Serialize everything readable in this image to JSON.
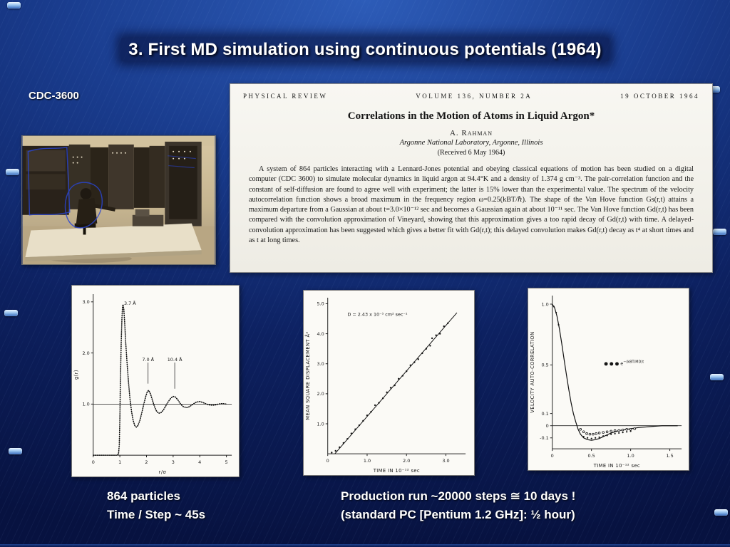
{
  "slide": {
    "title": "3. First MD simulation using continuous potentials (1964)",
    "computer_label": "CDC-3600",
    "notes_left": [
      "864 particles",
      "Time / Step ~ 45s"
    ],
    "notes_right": [
      "Production run ~20000 steps  ≅  10 days !",
      "(standard PC [Pentium 1.2 GHz]: ½ hour)"
    ]
  },
  "paper": {
    "header_left": "PHYSICAL REVIEW",
    "header_center": "VOLUME 136, NUMBER 2A",
    "header_right": "19 OCTOBER 1964",
    "title": "Correlations in the Motion of Atoms in Liquid Argon*",
    "author": "A. Rahman",
    "affiliation": "Argonne National Laboratory, Argonne, Illinois",
    "received": "(Received 6 May 1964)",
    "abstract": "A system of 864 particles interacting with a Lennard-Jones potential and obeying classical equations of motion has been studied on a digital computer (CDC 3600) to simulate molecular dynamics in liquid argon at 94.4°K and a density of 1.374 g cm⁻³. The pair-correlation function and the constant of self-diffusion are found to agree well with experiment; the latter is 15% lower than the experimental value. The spectrum of the velocity autocorrelation function shows a broad maximum in the frequency region ω=0.25(kBT/ℏ). The shape of the Van Hove function Gs(r,t) attains a maximum departure from a Gaussian at about t=3.0×10⁻¹² sec and becomes a Gaussian again at about 10⁻¹¹ sec. The Van Hove function Gd(r,t) has been compared with the convolution approximation of Vineyard, showing that this approximation gives a too rapid decay of Gd(r,t) with time. A delayed-convolution approximation has been suggested which gives a better fit with Gd(r,t); this delayed convolution makes Gd(r,t) decay as t⁴ at short times and as t at long times."
  },
  "chart_data": [
    {
      "id": "gr",
      "type": "line",
      "description": "Radial distribution function g(r) of liquid argon",
      "xlabel": "r/σ",
      "ylabel": "g(r)",
      "xlim": [
        0,
        5.2
      ],
      "ylim": [
        0,
        3.15
      ],
      "xticks": [
        "0",
        "1",
        "2",
        "3",
        "4",
        "5"
      ],
      "yticks": [
        "1.0",
        "2.0",
        "3.0"
      ],
      "baseline_y": 1.0,
      "series": [
        {
          "name": "g(r)",
          "x": [
            0,
            0.5,
            0.88,
            0.95,
            0.98,
            1.0,
            1.02,
            1.05,
            1.08,
            1.1,
            1.12,
            1.15,
            1.18,
            1.22,
            1.27,
            1.32,
            1.38,
            1.44,
            1.5,
            1.56,
            1.62,
            1.68,
            1.75,
            1.82,
            1.9,
            1.97,
            2.03,
            2.08,
            2.15,
            2.22,
            2.3,
            2.38,
            2.46,
            2.54,
            2.63,
            2.72,
            2.82,
            2.92,
            3.0,
            3.08,
            3.18,
            3.28,
            3.38,
            3.5,
            3.62,
            3.75,
            3.88,
            4.0,
            4.12,
            4.25,
            4.4,
            4.55,
            4.7,
            4.85,
            5.0
          ],
          "y": [
            0,
            0,
            0,
            0.02,
            0.2,
            0.7,
            1.4,
            2.2,
            2.7,
            2.9,
            2.95,
            2.85,
            2.6,
            2.2,
            1.8,
            1.45,
            1.1,
            0.85,
            0.68,
            0.58,
            0.55,
            0.58,
            0.68,
            0.82,
            1.0,
            1.15,
            1.24,
            1.27,
            1.2,
            1.08,
            0.95,
            0.86,
            0.82,
            0.83,
            0.88,
            0.96,
            1.05,
            1.12,
            1.15,
            1.14,
            1.08,
            1.0,
            0.95,
            0.93,
            0.95,
            1.0,
            1.04,
            1.05,
            1.03,
            1.0,
            0.98,
            0.98,
            1.0,
            1.01,
            1.0
          ]
        }
      ],
      "annotations": [
        {
          "text": "3.7 Å",
          "x": 1.38,
          "label_y": 2.94
        },
        {
          "text": "7.0 Å",
          "x": 2.06,
          "label_y": 1.84,
          "tip_y": 1.4
        },
        {
          "text": "10.4 Å",
          "x": 3.06,
          "label_y": 1.84,
          "tip_y": 1.3
        }
      ]
    },
    {
      "id": "msd",
      "type": "scatter",
      "description": "Mean square displacement vs time, slope gives self-diffusion constant",
      "xlabel": "TIME IN 10⁻¹² sec",
      "ylabel": "MEAN SQUARE DISPLACEMENT Å²",
      "xlim": [
        0,
        3.5
      ],
      "ylim": [
        0,
        5.2
      ],
      "xticks": [
        "0",
        "1.0",
        "2.0",
        "3.0"
      ],
      "yticks": [
        "1.0",
        "2.0",
        "3.0",
        "4.0",
        "5.0"
      ],
      "annotation": {
        "text": "D = 2.43 x 10⁻⁵ cm² sec⁻¹",
        "x": 0.5,
        "y": 4.6
      },
      "fit_line": {
        "x1": 0.18,
        "y1": 0,
        "x2": 3.28,
        "y2": 4.7
      },
      "points_x": [
        0.1,
        0.2,
        0.3,
        0.4,
        0.5,
        0.6,
        0.7,
        0.8,
        0.9,
        1.0,
        1.1,
        1.2,
        1.3,
        1.4,
        1.5,
        1.6,
        1.7,
        1.8,
        1.9,
        2.0,
        2.1,
        2.2,
        2.3,
        2.4,
        2.5,
        2.6,
        2.65,
        2.75,
        2.85,
        2.95,
        3.05
      ],
      "points_y": [
        0.04,
        0.1,
        0.22,
        0.36,
        0.5,
        0.68,
        0.82,
        0.95,
        1.1,
        1.28,
        1.4,
        1.62,
        1.7,
        1.85,
        2.05,
        2.2,
        2.28,
        2.5,
        2.6,
        2.75,
        2.95,
        3.05,
        3.15,
        3.35,
        3.5,
        3.6,
        3.85,
        3.95,
        4.0,
        4.25,
        4.35
      ]
    },
    {
      "id": "vacf",
      "type": "line",
      "description": "Velocity autocorrelation function of liquid argon",
      "xlabel": "TIME IN 10⁻¹² sec",
      "ylabel": "VELOCITY AUTO-CORRELATION",
      "xlim": [
        0,
        1.65
      ],
      "ylim": [
        -0.19,
        1.07
      ],
      "xticks": [
        "0",
        "0.5",
        "1.0",
        "1.5"
      ],
      "yticks": [
        "1.0",
        "0.5",
        "0.1",
        "0",
        "-0.1"
      ],
      "baseline_y": 0,
      "curve_x": [
        0,
        0.03,
        0.06,
        0.09,
        0.12,
        0.15,
        0.18,
        0.21,
        0.24,
        0.27,
        0.3,
        0.33,
        0.36,
        0.4,
        0.45,
        0.5,
        0.55,
        0.6,
        0.65,
        0.7,
        0.75,
        0.8,
        0.85,
        0.9,
        0.95,
        1.0,
        1.1,
        1.2,
        1.3,
        1.4,
        1.5,
        1.6
      ],
      "curve_y": [
        1.0,
        0.97,
        0.9,
        0.8,
        0.68,
        0.55,
        0.42,
        0.3,
        0.19,
        0.1,
        0.03,
        -0.03,
        -0.07,
        -0.1,
        -0.115,
        -0.12,
        -0.115,
        -0.105,
        -0.09,
        -0.075,
        -0.06,
        -0.05,
        -0.04,
        -0.035,
        -0.03,
        -0.025,
        -0.015,
        -0.01,
        -0.005,
        0,
        0,
        0
      ],
      "open_x": [
        0.36,
        0.4,
        0.44,
        0.48,
        0.52,
        0.56,
        0.6,
        0.65,
        0.7,
        0.75,
        0.8,
        0.85,
        0.9,
        0.95,
        1.0,
        1.05
      ],
      "open_y": [
        -0.03,
        -0.05,
        -0.065,
        -0.07,
        -0.07,
        -0.065,
        -0.06,
        -0.055,
        -0.05,
        -0.045,
        -0.04,
        -0.04,
        -0.035,
        -0.03,
        -0.03,
        -0.025
      ],
      "filled_x": [
        0.02,
        0.05,
        0.08,
        0.4,
        0.45,
        0.5,
        0.55,
        0.6,
        0.65,
        0.7,
        0.75,
        0.8,
        0.85,
        0.9,
        0.95,
        1.0
      ],
      "filled_y": [
        0.98,
        0.93,
        0.83,
        -0.09,
        -0.1,
        -0.105,
        -0.1,
        -0.095,
        -0.085,
        -0.08,
        -0.07,
        -0.065,
        -0.06,
        -0.055,
        -0.05,
        -0.045
      ],
      "annotation": {
        "dots": "● ● ●",
        "base": "e",
        "exp": "−(kBT/MD)t",
        "x": 0.66,
        "y": 0.5
      }
    }
  ]
}
